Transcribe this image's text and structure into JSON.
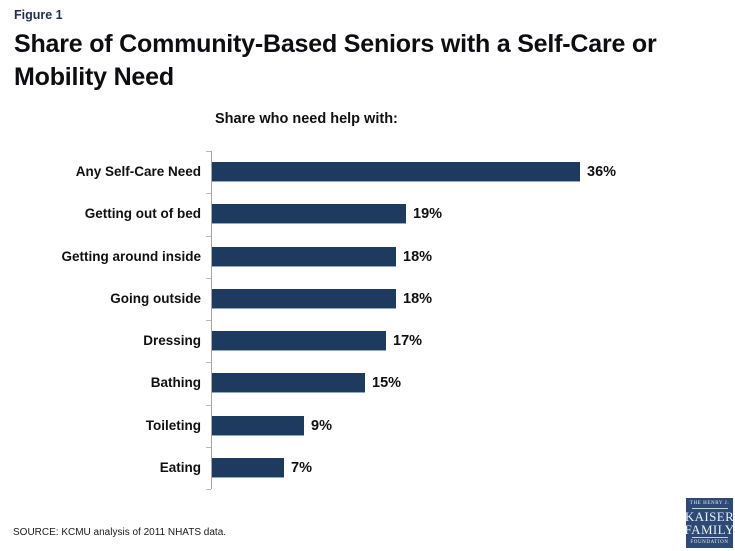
{
  "figure_label": "Figure 1",
  "title": "Share of Community-Based Seniors with a Self-Care or Mobility Need",
  "chart_data": {
    "type": "bar",
    "orientation": "horizontal",
    "title": "Share who need help with:",
    "categories": [
      "Any Self-Care Need",
      "Getting out of bed",
      "Getting around inside",
      "Going outside",
      "Dressing",
      "Bathing",
      "Toileting",
      "Eating"
    ],
    "values": [
      36,
      19,
      18,
      18,
      17,
      15,
      9,
      7
    ],
    "value_labels": [
      "36%",
      "19%",
      "18%",
      "18%",
      "17%",
      "15%",
      "9%",
      "7%"
    ],
    "xlim": [
      0,
      40
    ],
    "grid": false,
    "legend": "none",
    "bar_color": "#1e3a5f",
    "axis_color": "#a6a6a6"
  },
  "source": "SOURCE: KCMU analysis of 2011 NHATS data.",
  "logo": {
    "line1": "THE HENRY J.",
    "line2": "KAISER",
    "line3": "FAMILY",
    "line4": "FOUNDATION",
    "bg_color": "#2d4a77"
  }
}
